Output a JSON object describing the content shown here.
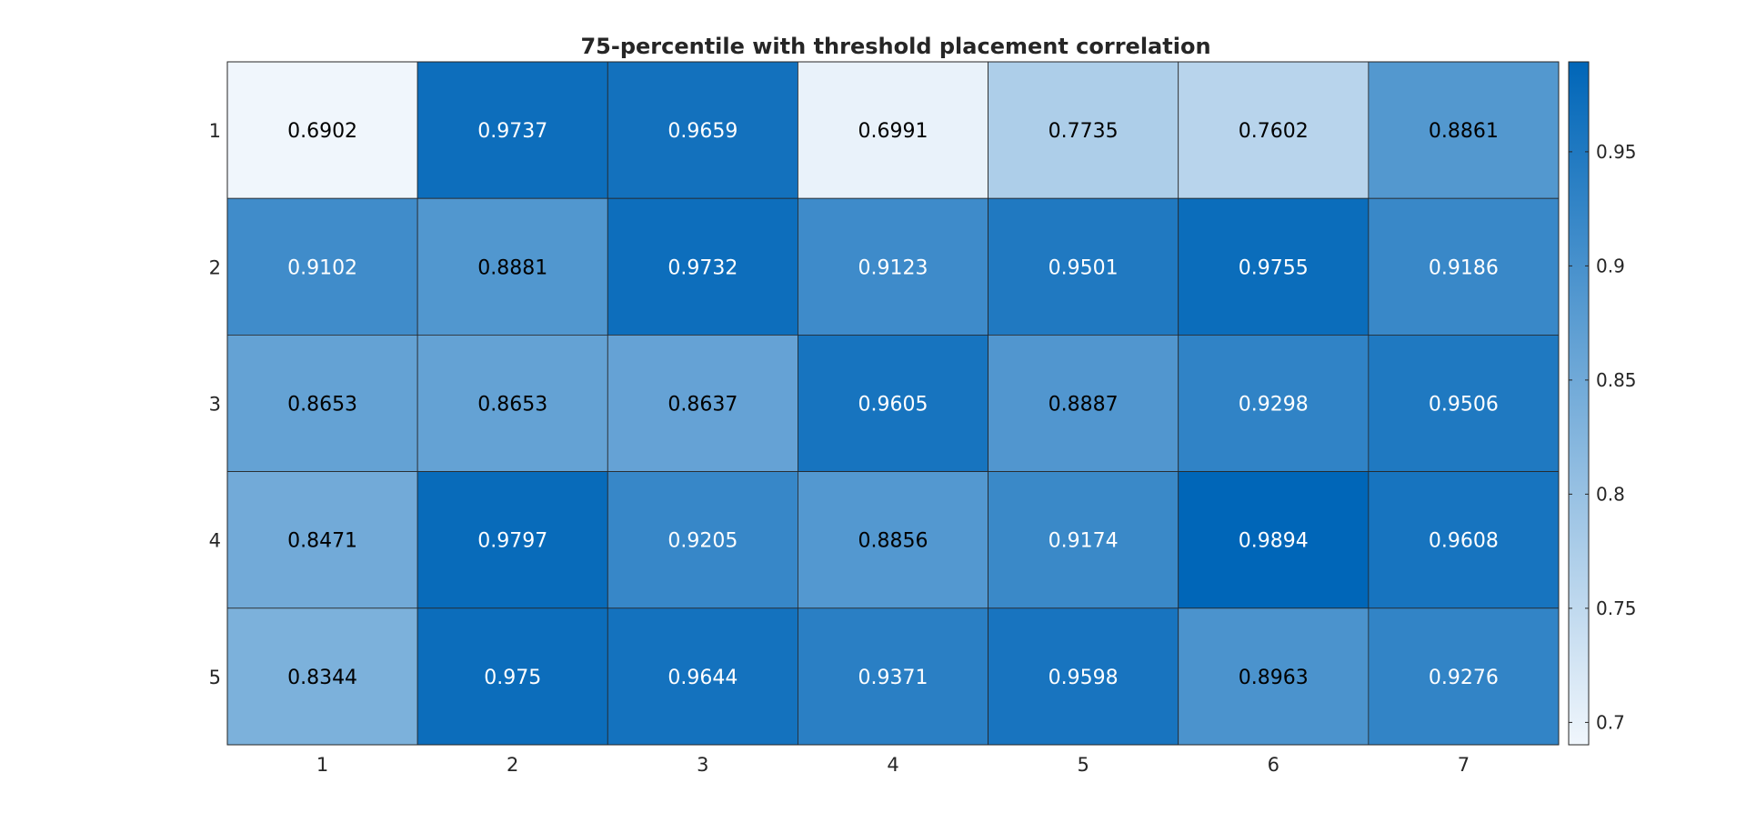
{
  "chart_data": {
    "type": "heatmap",
    "title": "75-percentile with threshold placement correlation",
    "xlabel": "",
    "ylabel": "",
    "x_categories": [
      "1",
      "2",
      "3",
      "4",
      "5",
      "6",
      "7"
    ],
    "y_categories": [
      "1",
      "2",
      "3",
      "4",
      "5"
    ],
    "values": [
      [
        "0.6902",
        "0.9737",
        "0.9659",
        "0.6991",
        "0.7735",
        "0.7602",
        "0.8861"
      ],
      [
        "0.9102",
        "0.8881",
        "0.9732",
        "0.9123",
        "0.9501",
        "0.9755",
        "0.9186"
      ],
      [
        "0.8653",
        "0.8653",
        "0.8637",
        "0.9605",
        "0.8887",
        "0.9298",
        "0.9506"
      ],
      [
        "0.8471",
        "0.9797",
        "0.9205",
        "0.8856",
        "0.9174",
        "0.9894",
        "0.9608"
      ],
      [
        "0.8344",
        "0.975",
        "0.9644",
        "0.9371",
        "0.9598",
        "0.8963",
        "0.9276"
      ]
    ],
    "color_range": [
      0.6902,
      0.9894
    ],
    "colorbar": {
      "ticks": [
        "0.7",
        "0.75",
        "0.8",
        "0.85",
        "0.9",
        "0.95"
      ],
      "low_color": "#f0f6fc",
      "high_color": "#0066b8"
    },
    "text_colors": {
      "dark": "#000000",
      "light": "#ffffff"
    },
    "grid_color": "#262626"
  }
}
